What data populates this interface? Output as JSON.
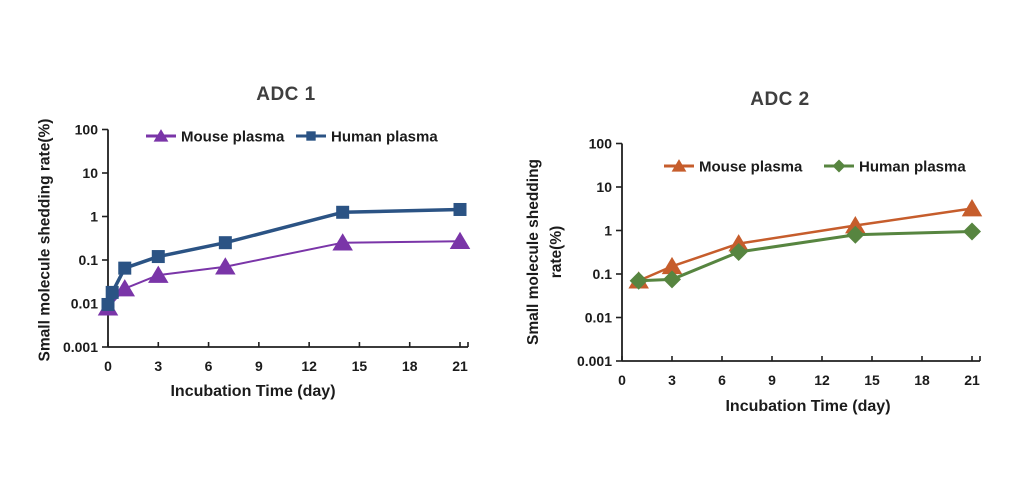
{
  "figure": {
    "background": "#FFFFFF",
    "title_color": "#3F3F3F",
    "axis_text_color": "#1B1B1B",
    "axis_line_color": "#1F1F1F"
  },
  "chart_data": [
    {
      "type": "line",
      "title": "ADC 1",
      "xlabel": "Incubation Time (day)",
      "ylabel": "Small molecule shedding rate(%)",
      "ylabel_lines": [
        "Small molecule shedding rate(%)"
      ],
      "x_ticks": [
        0,
        3,
        6,
        9,
        12,
        15,
        18,
        21
      ],
      "xlim": [
        0,
        21
      ],
      "y_scale": "log",
      "ylim": [
        0.001,
        100
      ],
      "y_tick_labels": [
        "0.001",
        "0.01",
        "0.1",
        "1",
        "10",
        "100"
      ],
      "grid": false,
      "legend_position": "top-inside",
      "series": [
        {
          "name": "Mouse plasma",
          "color": "#7A35A8",
          "marker": "triangle",
          "x": [
            0,
            1,
            3,
            7,
            14,
            21
          ],
          "y": [
            0.008,
            0.022,
            0.045,
            0.07,
            0.25,
            0.27
          ]
        },
        {
          "name": "Human plasma",
          "color": "#2B5384",
          "marker": "square",
          "x": [
            0,
            0.25,
            1,
            3,
            7,
            14,
            21
          ],
          "y": [
            0.0095,
            0.018,
            0.065,
            0.12,
            0.25,
            1.25,
            1.45
          ]
        }
      ]
    },
    {
      "type": "line",
      "title": "ADC 2",
      "xlabel": "Incubation Time (day)",
      "ylabel": "Small molecule shedding rate(%)",
      "ylabel_lines": [
        "Small molecule shedding",
        "rate(%)"
      ],
      "x_ticks": [
        0,
        3,
        6,
        9,
        12,
        15,
        18,
        21
      ],
      "xlim": [
        0,
        21
      ],
      "y_scale": "log",
      "ylim": [
        0.001,
        100
      ],
      "y_tick_labels": [
        "0.001",
        "0.01",
        "0.1",
        "1",
        "10",
        "100"
      ],
      "grid": false,
      "legend_position": "top-inside",
      "series": [
        {
          "name": "Mouse plasma",
          "color": "#C65D2C",
          "marker": "triangle",
          "x": [
            1,
            3,
            7,
            14,
            21
          ],
          "y": [
            0.07,
            0.15,
            0.5,
            1.3,
            3.2
          ]
        },
        {
          "name": "Human plasma",
          "color": "#578540",
          "marker": "diamond",
          "x": [
            1,
            3,
            7,
            14,
            21
          ],
          "y": [
            0.07,
            0.075,
            0.32,
            0.8,
            0.95
          ]
        }
      ]
    }
  ]
}
